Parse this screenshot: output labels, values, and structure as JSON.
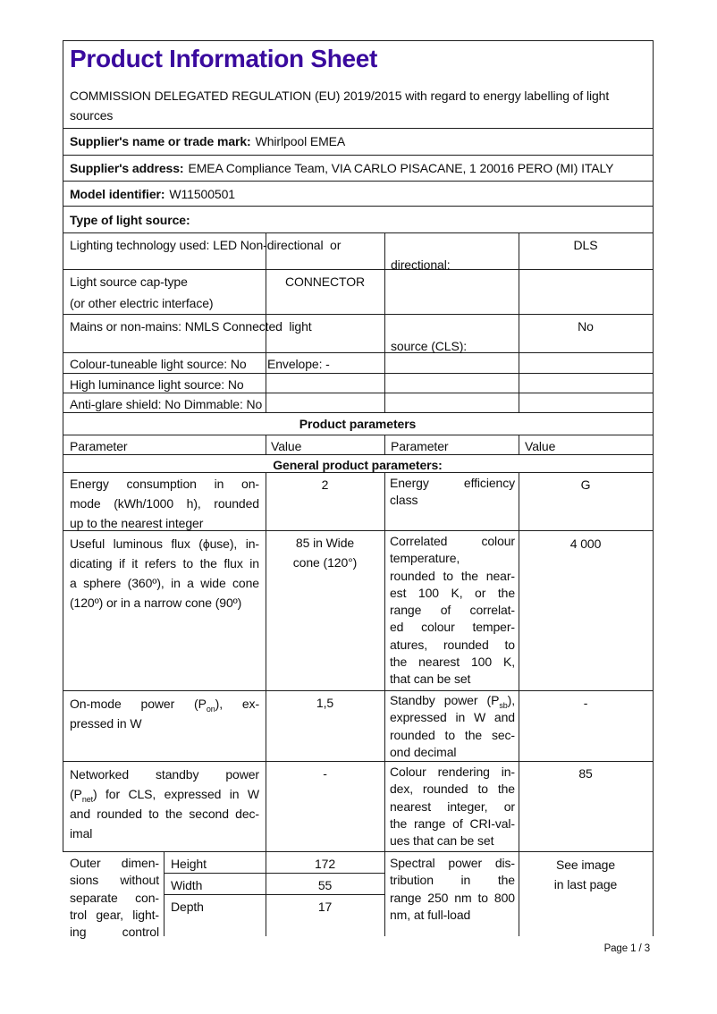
{
  "accent_color": "#3a0a9e",
  "header": {
    "title": "Product Information Sheet",
    "subtitle_lines": [
      "COMMISSION DELEGATED REGULATION (EU) 2019/2015 with regard to energy labelling of light",
      "sources"
    ]
  },
  "supplier": {
    "name_label": "Supplier's name or trade mark:",
    "name_value": "Whirlpool EMEA",
    "address_label": "Supplier's address:",
    "address_value": "EMEA Compliance Team, VIA CARLO PISACANE, 1 20016 PERO (MI) ITALY",
    "model_label": "Model identifier:",
    "model_value": "W11500501",
    "type_label": "Type of light source:"
  },
  "type_table": {
    "r1_left": "Lighting technology used: LED Non-directional  or",
    "r1_mid": "directional:",
    "r1_value": "DLS",
    "r2_left1": "Light source cap-type",
    "r2_left2": "(or other electric interface)",
    "r2_value": "CONNECTOR",
    "r3_left": "Mains or non-mains: NMLS Connected  light",
    "r3_mid": "source (CLS):",
    "r3_value": "No",
    "r4_left": "Colour-tuneable light source: No",
    "r4_mid": "Envelope: -",
    "r5_left": "High luminance light source: No",
    "r6_left": "Anti-glare shield: No Dimmable: No"
  },
  "params": {
    "section_title": "Product parameters",
    "col_headers": [
      "Parameter",
      "Value",
      "Parameter",
      "Value"
    ],
    "general_title": "General product parameters:",
    "rows": [
      {
        "p1": [
          "Energy consumption in on-",
          "mode (kWh/1000 h), rounded",
          "up to the nearest integer"
        ],
        "v1": "2",
        "p2": [
          "Energy efficiency",
          "class"
        ],
        "v2": "G"
      },
      {
        "p1": [
          "Useful luminous flux (ϕuse), in-",
          "dicating if it refers to the flux in",
          "a sphere (360º), in a wide cone",
          "(120º) or in a narrow cone (90º)"
        ],
        "v1": [
          "85 in Wide",
          "cone (120°)"
        ],
        "p2": [
          "Correlated colour",
          "temperature,",
          "rounded to the near-",
          "est 100 K, or the",
          "range of correlat-",
          "ed colour temper-",
          "atures, rounded to",
          "the nearest 100 K,",
          "that can be set"
        ],
        "v2": "4 000"
      },
      {
        "p1": [
          "On-mode power (P~on~), ex-",
          "pressed in W"
        ],
        "v1": "1,5",
        "p2": [
          "Standby power (P~sb~),",
          "expressed in W and",
          "rounded to the sec-",
          "ond decimal"
        ],
        "v2": "-"
      },
      {
        "p1": [
          "Networked standby power",
          "(P~net~) for CLS, expressed in W",
          "and rounded to the second dec-",
          "imal"
        ],
        "v1": "-",
        "p2": [
          "Colour rendering in-",
          "dex, rounded to the",
          "nearest integer, or",
          "the range of CRI-val-",
          "ues that can be set"
        ],
        "v2": "85"
      }
    ],
    "dims_row": {
      "p1": [
        "Outer dimen-",
        "sions without",
        "separate con-",
        "trol gear, light-",
        "ing control"
      ],
      "dims": [
        {
          "label": "Height",
          "value": "172"
        },
        {
          "label": "Width",
          "value": "55"
        },
        {
          "label": "Depth",
          "value": "17"
        }
      ],
      "p2": [
        "Spectral power dis-",
        "tribution in the",
        "range 250 nm to 800",
        "nm, at full-load"
      ],
      "v2": [
        "See image",
        "in last page"
      ]
    }
  },
  "page": {
    "footer": "Page 1 / 3"
  }
}
